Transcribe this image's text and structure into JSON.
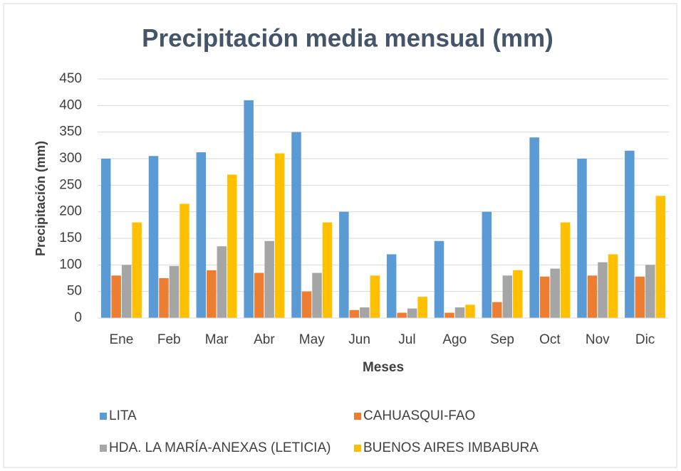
{
  "chart_data": {
    "type": "bar",
    "title": "Precipitación media mensual (mm)",
    "x_label": "Meses",
    "y_label": "Precipitación (mm)",
    "categories": [
      "Ene",
      "Feb",
      "Mar",
      "Abr",
      "May",
      "Jun",
      "Jul",
      "Ago",
      "Sep",
      "Oct",
      "Nov",
      "Dic"
    ],
    "series": [
      {
        "name": "LITA",
        "color": "#5b9bd5",
        "values": [
          300,
          305,
          312,
          410,
          350,
          200,
          120,
          145,
          200,
          340,
          300,
          315
        ]
      },
      {
        "name": "CAHUASQUI-FAO",
        "color": "#ed7d31",
        "values": [
          80,
          75,
          90,
          85,
          50,
          15,
          10,
          10,
          30,
          78,
          80,
          78
        ]
      },
      {
        "name": "HDA. LA MARÍA-ANEXAS (LETICIA)",
        "color": "#a5a5a5",
        "values": [
          100,
          98,
          135,
          145,
          85,
          20,
          18,
          20,
          80,
          93,
          105,
          100
        ]
      },
      {
        "name": "BUENOS AIRES IMBABURA",
        "color": "#ffc000",
        "values": [
          180,
          215,
          270,
          310,
          180,
          80,
          40,
          25,
          90,
          180,
          120,
          230
        ]
      }
    ],
    "ylim": [
      0,
      450
    ],
    "yticks": [
      0,
      50,
      100,
      150,
      200,
      250,
      300,
      350,
      400,
      450
    ],
    "grid": true,
    "legend": "bottom"
  }
}
